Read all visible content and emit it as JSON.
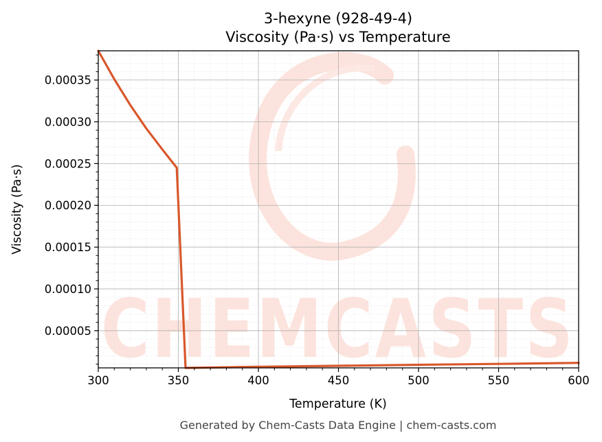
{
  "chart_data": {
    "type": "line",
    "title": "3-hexyne (928-49-4)",
    "subtitle": "Viscosity (Pa·s) vs Temperature",
    "xlabel": "Temperature (K)",
    "ylabel": "Viscosity (Pa·s)",
    "xlim": [
      300,
      600
    ],
    "ylim": [
      5.5e-06,
      0.000385
    ],
    "xticks": [
      300,
      350,
      400,
      450,
      500,
      550,
      600
    ],
    "xtick_labels": [
      "300",
      "350",
      "400",
      "450",
      "500",
      "550",
      "600"
    ],
    "yticks": [
      5e-05,
      0.0001,
      0.00015,
      0.0002,
      0.00025,
      0.0003,
      0.00035
    ],
    "ytick_labels": [
      "0.00005",
      "0.00010",
      "0.00015",
      "0.00020",
      "0.00025",
      "0.00030",
      "0.00035"
    ],
    "grid": true,
    "series": [
      {
        "color": "#d9572b",
        "x": [
          300,
          310,
          320,
          330,
          340,
          349,
          354.5,
          356,
          400,
          450,
          500,
          550,
          600
        ],
        "y": [
          0.000385,
          0.000351,
          0.00032,
          0.000292,
          0.000267,
          0.000245,
          5.5e-06,
          5.5e-06,
          6.8e-06,
          8e-06,
          9.2e-06,
          1.03e-05,
          1.15e-05
        ]
      }
    ]
  },
  "watermark": {
    "text": "CHEMCASTS",
    "color": "#fde3dd"
  },
  "footer": "Generated by Chem-Casts Data Engine | chem-casts.com"
}
